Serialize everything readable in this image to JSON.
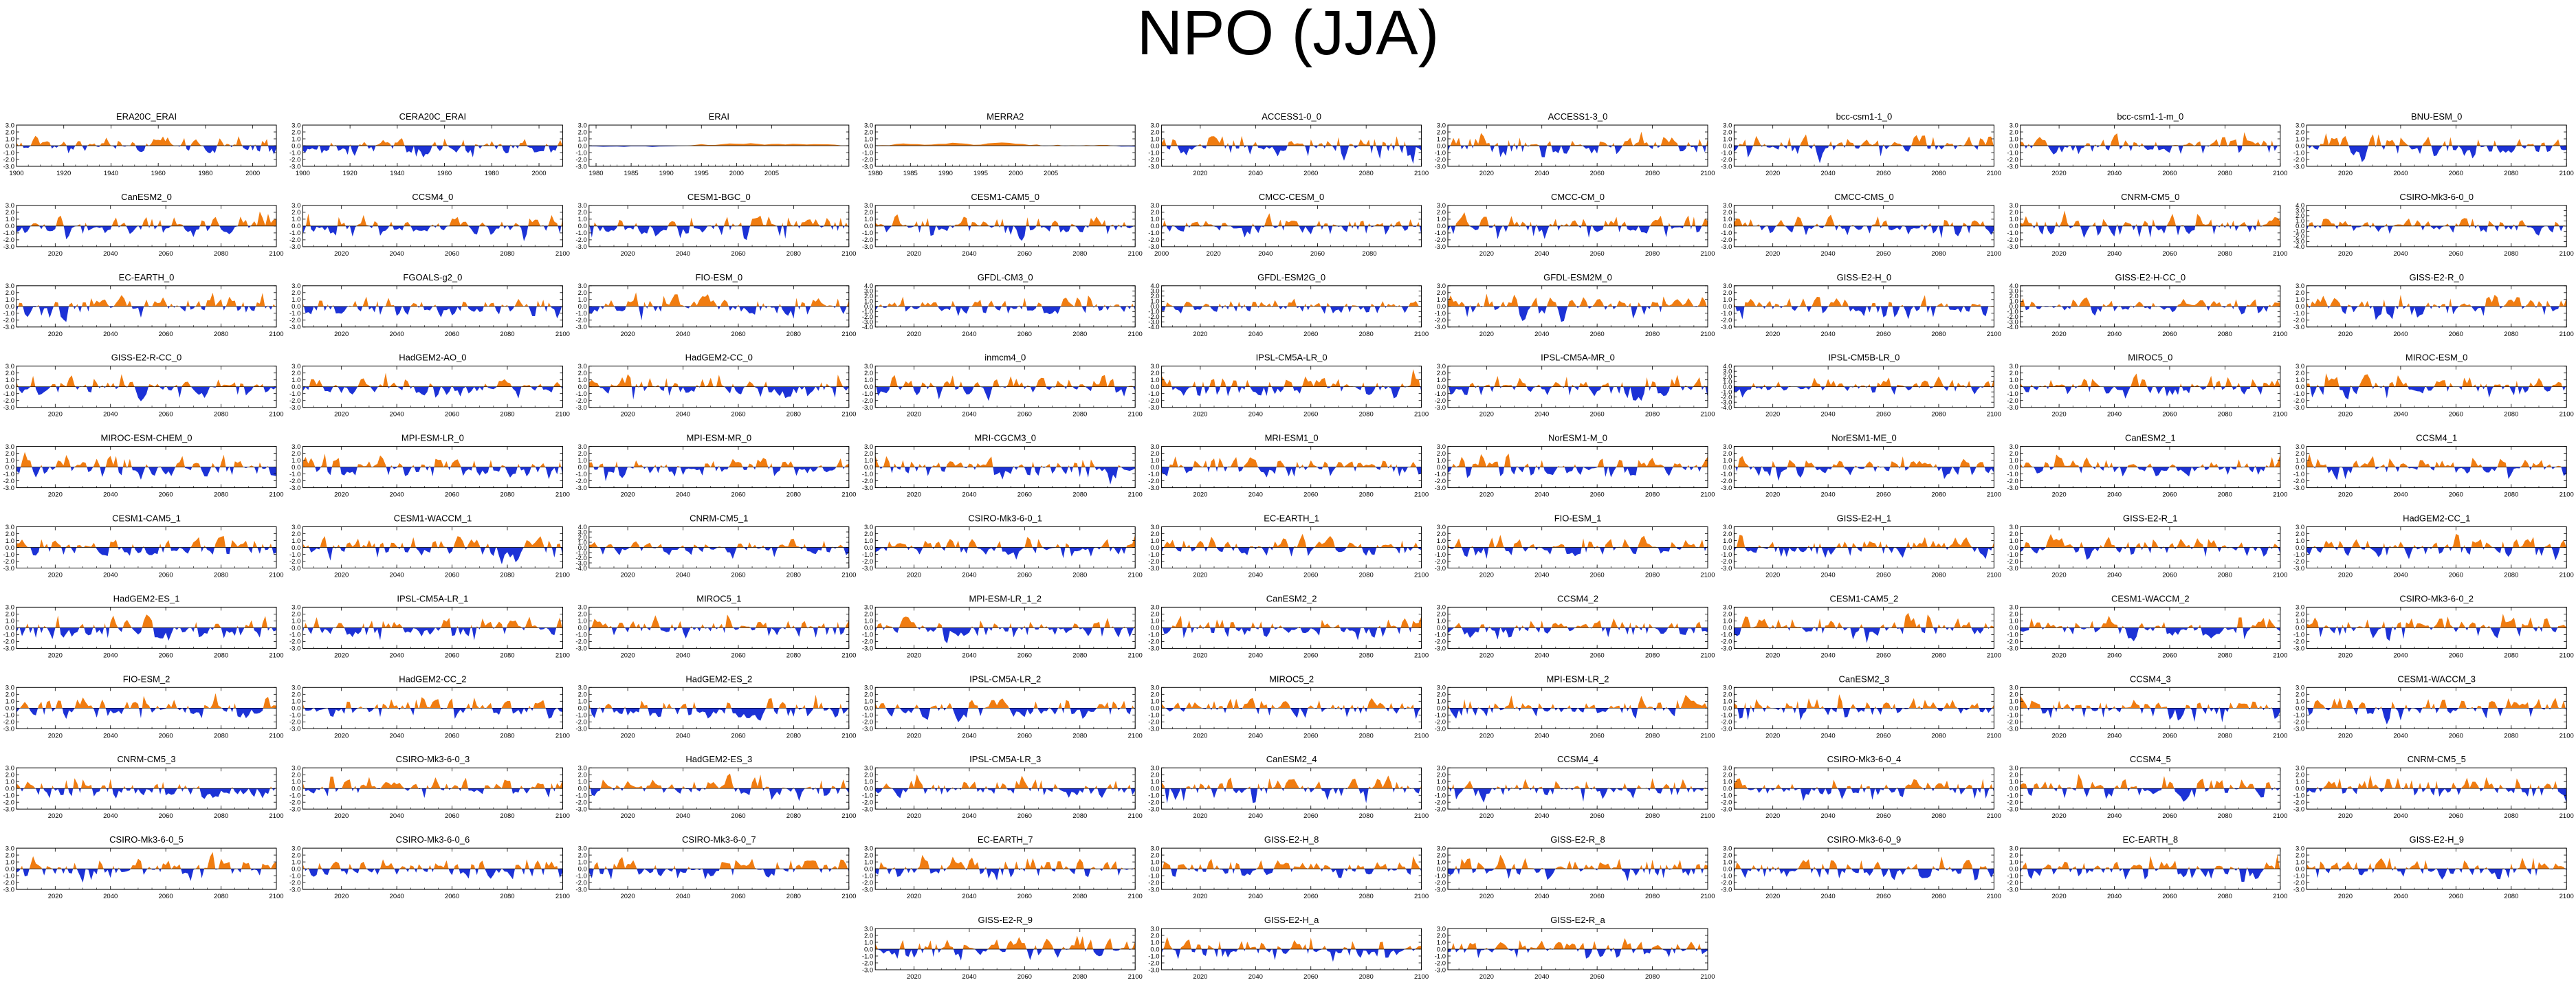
{
  "title": "NPO (JJA)",
  "colors": {
    "positive": "#f07c10",
    "negative": "#1c32d6",
    "axis": "#000000"
  },
  "chart_data": {
    "type": "area",
    "layout": {
      "columns": 9,
      "rows": 11
    },
    "y_ticks": [
      "3.0",
      "2.0",
      "1.0",
      "0.0",
      "-1.0",
      "-2.0",
      "-3.0"
    ],
    "ylim": [
      -3,
      3
    ],
    "grid": false,
    "fill": "anomalies above zero filled in the positive color, below zero in the negative color",
    "panels": [
      {
        "name": "ERA20C_ERAI",
        "col": 0,
        "row": 0,
        "xlim": [
          1900,
          2010
        ],
        "xticks": [
          "1900",
          "1920",
          "1940",
          "1960",
          "1980",
          "2000"
        ],
        "ylim": [
          -3,
          3
        ],
        "yticks": [
          "3.0",
          "2.0",
          "1.0",
          "0.0",
          "-1.0",
          "-2.0",
          "-3.0"
        ],
        "points": 111,
        "smooth": 0.45,
        "seed": 11
      },
      {
        "name": "CERA20C_ERAI",
        "col": 1,
        "row": 0,
        "xlim": [
          1900,
          2010
        ],
        "xticks": [
          "1900",
          "1920",
          "1940",
          "1960",
          "1980",
          "2000"
        ],
        "ylim": [
          -3,
          3
        ],
        "yticks": [
          "3.0",
          "2.0",
          "1.0",
          "0.0",
          "-1.0",
          "-2.0",
          "-3.0"
        ],
        "points": 111,
        "smooth": 0.45,
        "seed": 12
      },
      {
        "name": "ERAI",
        "col": 2,
        "row": 0,
        "xlim": [
          1979,
          2016
        ],
        "xticks": [
          "1980",
          "1985",
          "1990",
          "1995",
          "2000",
          "2005"
        ],
        "ylim": [
          -3,
          3
        ],
        "yticks": [
          "3.0",
          "2.0",
          "1.0",
          "0.0",
          "-1.0",
          "-2.0",
          "-3.0"
        ],
        "points": 38,
        "smooth": 0.92,
        "seed": 13
      },
      {
        "name": "MERRA2",
        "col": 3,
        "row": 0,
        "xlim": [
          1980,
          2017
        ],
        "xticks": [
          "1980",
          "1985",
          "1990",
          "1995",
          "2000",
          "2005"
        ],
        "ylim": [
          -3,
          3
        ],
        "yticks": [
          "3.0",
          "2.0",
          "1.0",
          "0.0",
          "-1.0",
          "-2.0",
          "-3.0"
        ],
        "points": 38,
        "smooth": 0.92,
        "seed": 14
      },
      {
        "name": "ACCESS1-0_0",
        "col": 4,
        "row": 0,
        "seed": 15
      },
      {
        "name": "ACCESS1-3_0",
        "col": 5,
        "row": 0,
        "seed": 16
      },
      {
        "name": "bcc-csm1-1_0",
        "col": 6,
        "row": 0,
        "seed": 17
      },
      {
        "name": "bcc-csm1-1-m_0",
        "col": 7,
        "row": 0,
        "seed": 18
      },
      {
        "name": "BNU-ESM_0",
        "col": 8,
        "row": 0,
        "seed": 19
      },
      {
        "name": "CanESM2_0",
        "col": 0,
        "row": 1,
        "seed": 21
      },
      {
        "name": "CCSM4_0",
        "col": 1,
        "row": 1,
        "seed": 22
      },
      {
        "name": "CESM1-BGC_0",
        "col": 2,
        "row": 1,
        "seed": 23
      },
      {
        "name": "CESM1-CAM5_0",
        "col": 3,
        "row": 1,
        "seed": 24
      },
      {
        "name": "CMCC-CESM_0",
        "col": 4,
        "row": 1,
        "xlim": [
          2000,
          2100
        ],
        "xticks": [
          "2000",
          "2020",
          "2040",
          "2060",
          "2080"
        ],
        "seed": 25
      },
      {
        "name": "CMCC-CM_0",
        "col": 5,
        "row": 1,
        "seed": 26
      },
      {
        "name": "CMCC-CMS_0",
        "col": 6,
        "row": 1,
        "seed": 27
      },
      {
        "name": "CNRM-CM5_0",
        "col": 7,
        "row": 1,
        "seed": 28
      },
      {
        "name": "CSIRO-Mk3-6-0_0",
        "col": 8,
        "row": 1,
        "ylim": [
          -4,
          4
        ],
        "yticks": [
          "4.0",
          "3.0",
          "2.0",
          "1.0",
          "0.0",
          "-1.0",
          "-2.0",
          "-3.0",
          "-4.0"
        ],
        "seed": 29
      },
      {
        "name": "EC-EARTH_0",
        "col": 0,
        "row": 2,
        "seed": 31
      },
      {
        "name": "FGOALS-g2_0",
        "col": 1,
        "row": 2,
        "seed": 32
      },
      {
        "name": "FIO-ESM_0",
        "col": 2,
        "row": 2,
        "seed": 33
      },
      {
        "name": "GFDL-CM3_0",
        "col": 3,
        "row": 2,
        "ylim": [
          -4,
          4
        ],
        "yticks": [
          "4.0",
          "3.0",
          "2.0",
          "1.0",
          "0.0",
          "-1.0",
          "-2.0",
          "-3.0",
          "-4.0"
        ],
        "seed": 34
      },
      {
        "name": "GFDL-ESM2G_0",
        "col": 4,
        "row": 2,
        "ylim": [
          -4,
          4
        ],
        "yticks": [
          "4.0",
          "3.0",
          "2.0",
          "1.0",
          "0.0",
          "-1.0",
          "-2.0",
          "-3.0",
          "-4.0"
        ],
        "seed": 35
      },
      {
        "name": "GFDL-ESM2M_0",
        "col": 5,
        "row": 2,
        "seed": 36
      },
      {
        "name": "GISS-E2-H_0",
        "col": 6,
        "row": 2,
        "seed": 37
      },
      {
        "name": "GISS-E2-H-CC_0",
        "col": 7,
        "row": 2,
        "ylim": [
          -4,
          4
        ],
        "yticks": [
          "4.0",
          "3.0",
          "2.0",
          "1.0",
          "0.0",
          "-1.0",
          "-2.0",
          "-3.0",
          "-4.0"
        ],
        "seed": 38
      },
      {
        "name": "GISS-E2-R_0",
        "col": 8,
        "row": 2,
        "seed": 39
      },
      {
        "name": "GISS-E2-R-CC_0",
        "col": 0,
        "row": 3,
        "seed": 41
      },
      {
        "name": "HadGEM2-AO_0",
        "col": 1,
        "row": 3,
        "seed": 42
      },
      {
        "name": "HadGEM2-CC_0",
        "col": 2,
        "row": 3,
        "seed": 43
      },
      {
        "name": "inmcm4_0",
        "col": 3,
        "row": 3,
        "seed": 44
      },
      {
        "name": "IPSL-CM5A-LR_0",
        "col": 4,
        "row": 3,
        "seed": 45
      },
      {
        "name": "IPSL-CM5A-MR_0",
        "col": 5,
        "row": 3,
        "seed": 46
      },
      {
        "name": "IPSL-CM5B-LR_0",
        "col": 6,
        "row": 3,
        "ylim": [
          -4,
          4
        ],
        "yticks": [
          "4.0",
          "3.0",
          "2.0",
          "1.0",
          "0.0",
          "-1.0",
          "-2.0",
          "-3.0",
          "-4.0"
        ],
        "seed": 47
      },
      {
        "name": "MIROC5_0",
        "col": 7,
        "row": 3,
        "seed": 48
      },
      {
        "name": "MIROC-ESM_0",
        "col": 8,
        "row": 3,
        "seed": 49
      },
      {
        "name": "MIROC-ESM-CHEM_0",
        "col": 0,
        "row": 4,
        "seed": 51
      },
      {
        "name": "MPI-ESM-LR_0",
        "col": 1,
        "row": 4,
        "seed": 52
      },
      {
        "name": "MPI-ESM-MR_0",
        "col": 2,
        "row": 4,
        "seed": 53
      },
      {
        "name": "MRI-CGCM3_0",
        "col": 3,
        "row": 4,
        "seed": 54
      },
      {
        "name": "MRI-ESM1_0",
        "col": 4,
        "row": 4,
        "seed": 55
      },
      {
        "name": "NorESM1-M_0",
        "col": 5,
        "row": 4,
        "seed": 56
      },
      {
        "name": "NorESM1-ME_0",
        "col": 6,
        "row": 4,
        "seed": 57
      },
      {
        "name": "CanESM2_1",
        "col": 7,
        "row": 4,
        "seed": 58
      },
      {
        "name": "CCSM4_1",
        "col": 8,
        "row": 4,
        "seed": 59
      },
      {
        "name": "CESM1-CAM5_1",
        "col": 0,
        "row": 5,
        "seed": 61
      },
      {
        "name": "CESM1-WACCM_1",
        "col": 1,
        "row": 5,
        "seed": 62
      },
      {
        "name": "CNRM-CM5_1",
        "col": 2,
        "row": 5,
        "ylim": [
          -4,
          4
        ],
        "yticks": [
          "4.0",
          "3.0",
          "2.0",
          "1.0",
          "0.0",
          "-1.0",
          "-2.0",
          "-3.0",
          "-4.0"
        ],
        "seed": 63
      },
      {
        "name": "CSIRO-Mk3-6-0_1",
        "col": 3,
        "row": 5,
        "seed": 64
      },
      {
        "name": "EC-EARTH_1",
        "col": 4,
        "row": 5,
        "seed": 65
      },
      {
        "name": "FIO-ESM_1",
        "col": 5,
        "row": 5,
        "seed": 66
      },
      {
        "name": "GISS-E2-H_1",
        "col": 6,
        "row": 5,
        "seed": 67
      },
      {
        "name": "GISS-E2-R_1",
        "col": 7,
        "row": 5,
        "seed": 68
      },
      {
        "name": "HadGEM2-CC_1",
        "col": 8,
        "row": 5,
        "seed": 69
      },
      {
        "name": "HadGEM2-ES_1",
        "col": 0,
        "row": 6,
        "seed": 71
      },
      {
        "name": "IPSL-CM5A-LR_1",
        "col": 1,
        "row": 6,
        "seed": 72
      },
      {
        "name": "MIROC5_1",
        "col": 2,
        "row": 6,
        "seed": 73
      },
      {
        "name": "MPI-ESM-LR_1_2",
        "col": 3,
        "row": 6,
        "seed": 74
      },
      {
        "name": "CanESM2_2",
        "col": 4,
        "row": 6,
        "seed": 75
      },
      {
        "name": "CCSM4_2",
        "col": 5,
        "row": 6,
        "seed": 76
      },
      {
        "name": "CESM1-CAM5_2",
        "col": 6,
        "row": 6,
        "seed": 77
      },
      {
        "name": "CESM1-WACCM_2",
        "col": 7,
        "row": 6,
        "seed": 78
      },
      {
        "name": "CSIRO-Mk3-6-0_2",
        "col": 8,
        "row": 6,
        "seed": 79
      },
      {
        "name": "FIO-ESM_2",
        "col": 0,
        "row": 7,
        "seed": 81
      },
      {
        "name": "HadGEM2-CC_2",
        "col": 1,
        "row": 7,
        "seed": 82
      },
      {
        "name": "HadGEM2-ES_2",
        "col": 2,
        "row": 7,
        "seed": 83
      },
      {
        "name": "IPSL-CM5A-LR_2",
        "col": 3,
        "row": 7,
        "seed": 84
      },
      {
        "name": "MIROC5_2",
        "col": 4,
        "row": 7,
        "seed": 85
      },
      {
        "name": "MPI-ESM-LR_2",
        "col": 5,
        "row": 7,
        "seed": 86
      },
      {
        "name": "CanESM2_3",
        "col": 6,
        "row": 7,
        "seed": 87
      },
      {
        "name": "CCSM4_3",
        "col": 7,
        "row": 7,
        "seed": 88
      },
      {
        "name": "CESM1-WACCM_3",
        "col": 8,
        "row": 7,
        "seed": 89
      },
      {
        "name": "CNRM-CM5_3",
        "col": 0,
        "row": 8,
        "seed": 91
      },
      {
        "name": "CSIRO-Mk3-6-0_3",
        "col": 1,
        "row": 8,
        "seed": 92
      },
      {
        "name": "HadGEM2-ES_3",
        "col": 2,
        "row": 8,
        "seed": 93
      },
      {
        "name": "IPSL-CM5A-LR_3",
        "col": 3,
        "row": 8,
        "seed": 94
      },
      {
        "name": "CanESM2_4",
        "col": 4,
        "row": 8,
        "seed": 95
      },
      {
        "name": "CCSM4_4",
        "col": 5,
        "row": 8,
        "seed": 96
      },
      {
        "name": "CSIRO-Mk3-6-0_4",
        "col": 6,
        "row": 8,
        "seed": 97
      },
      {
        "name": "CCSM4_5",
        "col": 7,
        "row": 8,
        "seed": 98
      },
      {
        "name": "CNRM-CM5_5",
        "col": 8,
        "row": 8,
        "seed": 99
      },
      {
        "name": "CSIRO-Mk3-6-0_5",
        "col": 0,
        "row": 9,
        "seed": 101
      },
      {
        "name": "CSIRO-Mk3-6-0_6",
        "col": 1,
        "row": 9,
        "seed": 102
      },
      {
        "name": "CSIRO-Mk3-6-0_7",
        "col": 2,
        "row": 9,
        "seed": 103
      },
      {
        "name": "EC-EARTH_7",
        "col": 3,
        "row": 9,
        "seed": 104
      },
      {
        "name": "GISS-E2-H_8",
        "col": 4,
        "row": 9,
        "seed": 105
      },
      {
        "name": "GISS-E2-R_8",
        "col": 5,
        "row": 9,
        "seed": 106
      },
      {
        "name": "CSIRO-Mk3-6-0_9",
        "col": 6,
        "row": 9,
        "seed": 107
      },
      {
        "name": "EC-EARTH_8",
        "col": 7,
        "row": 9,
        "seed": 108
      },
      {
        "name": "GISS-E2-H_9",
        "col": 8,
        "row": 9,
        "seed": 109
      },
      {
        "name": "GISS-E2-R_9",
        "col": 3,
        "row": 10,
        "seed": 111
      },
      {
        "name": "GISS-E2-H_a",
        "col": 4,
        "row": 10,
        "seed": 112
      },
      {
        "name": "GISS-E2-R_a",
        "col": 5,
        "row": 10,
        "seed": 113
      }
    ],
    "default_panel": {
      "xlim": [
        2006,
        2100
      ],
      "xticks": [
        "2020",
        "2040",
        "2060",
        "2080",
        "2100"
      ],
      "points": 95,
      "smooth": 0.25
    }
  }
}
